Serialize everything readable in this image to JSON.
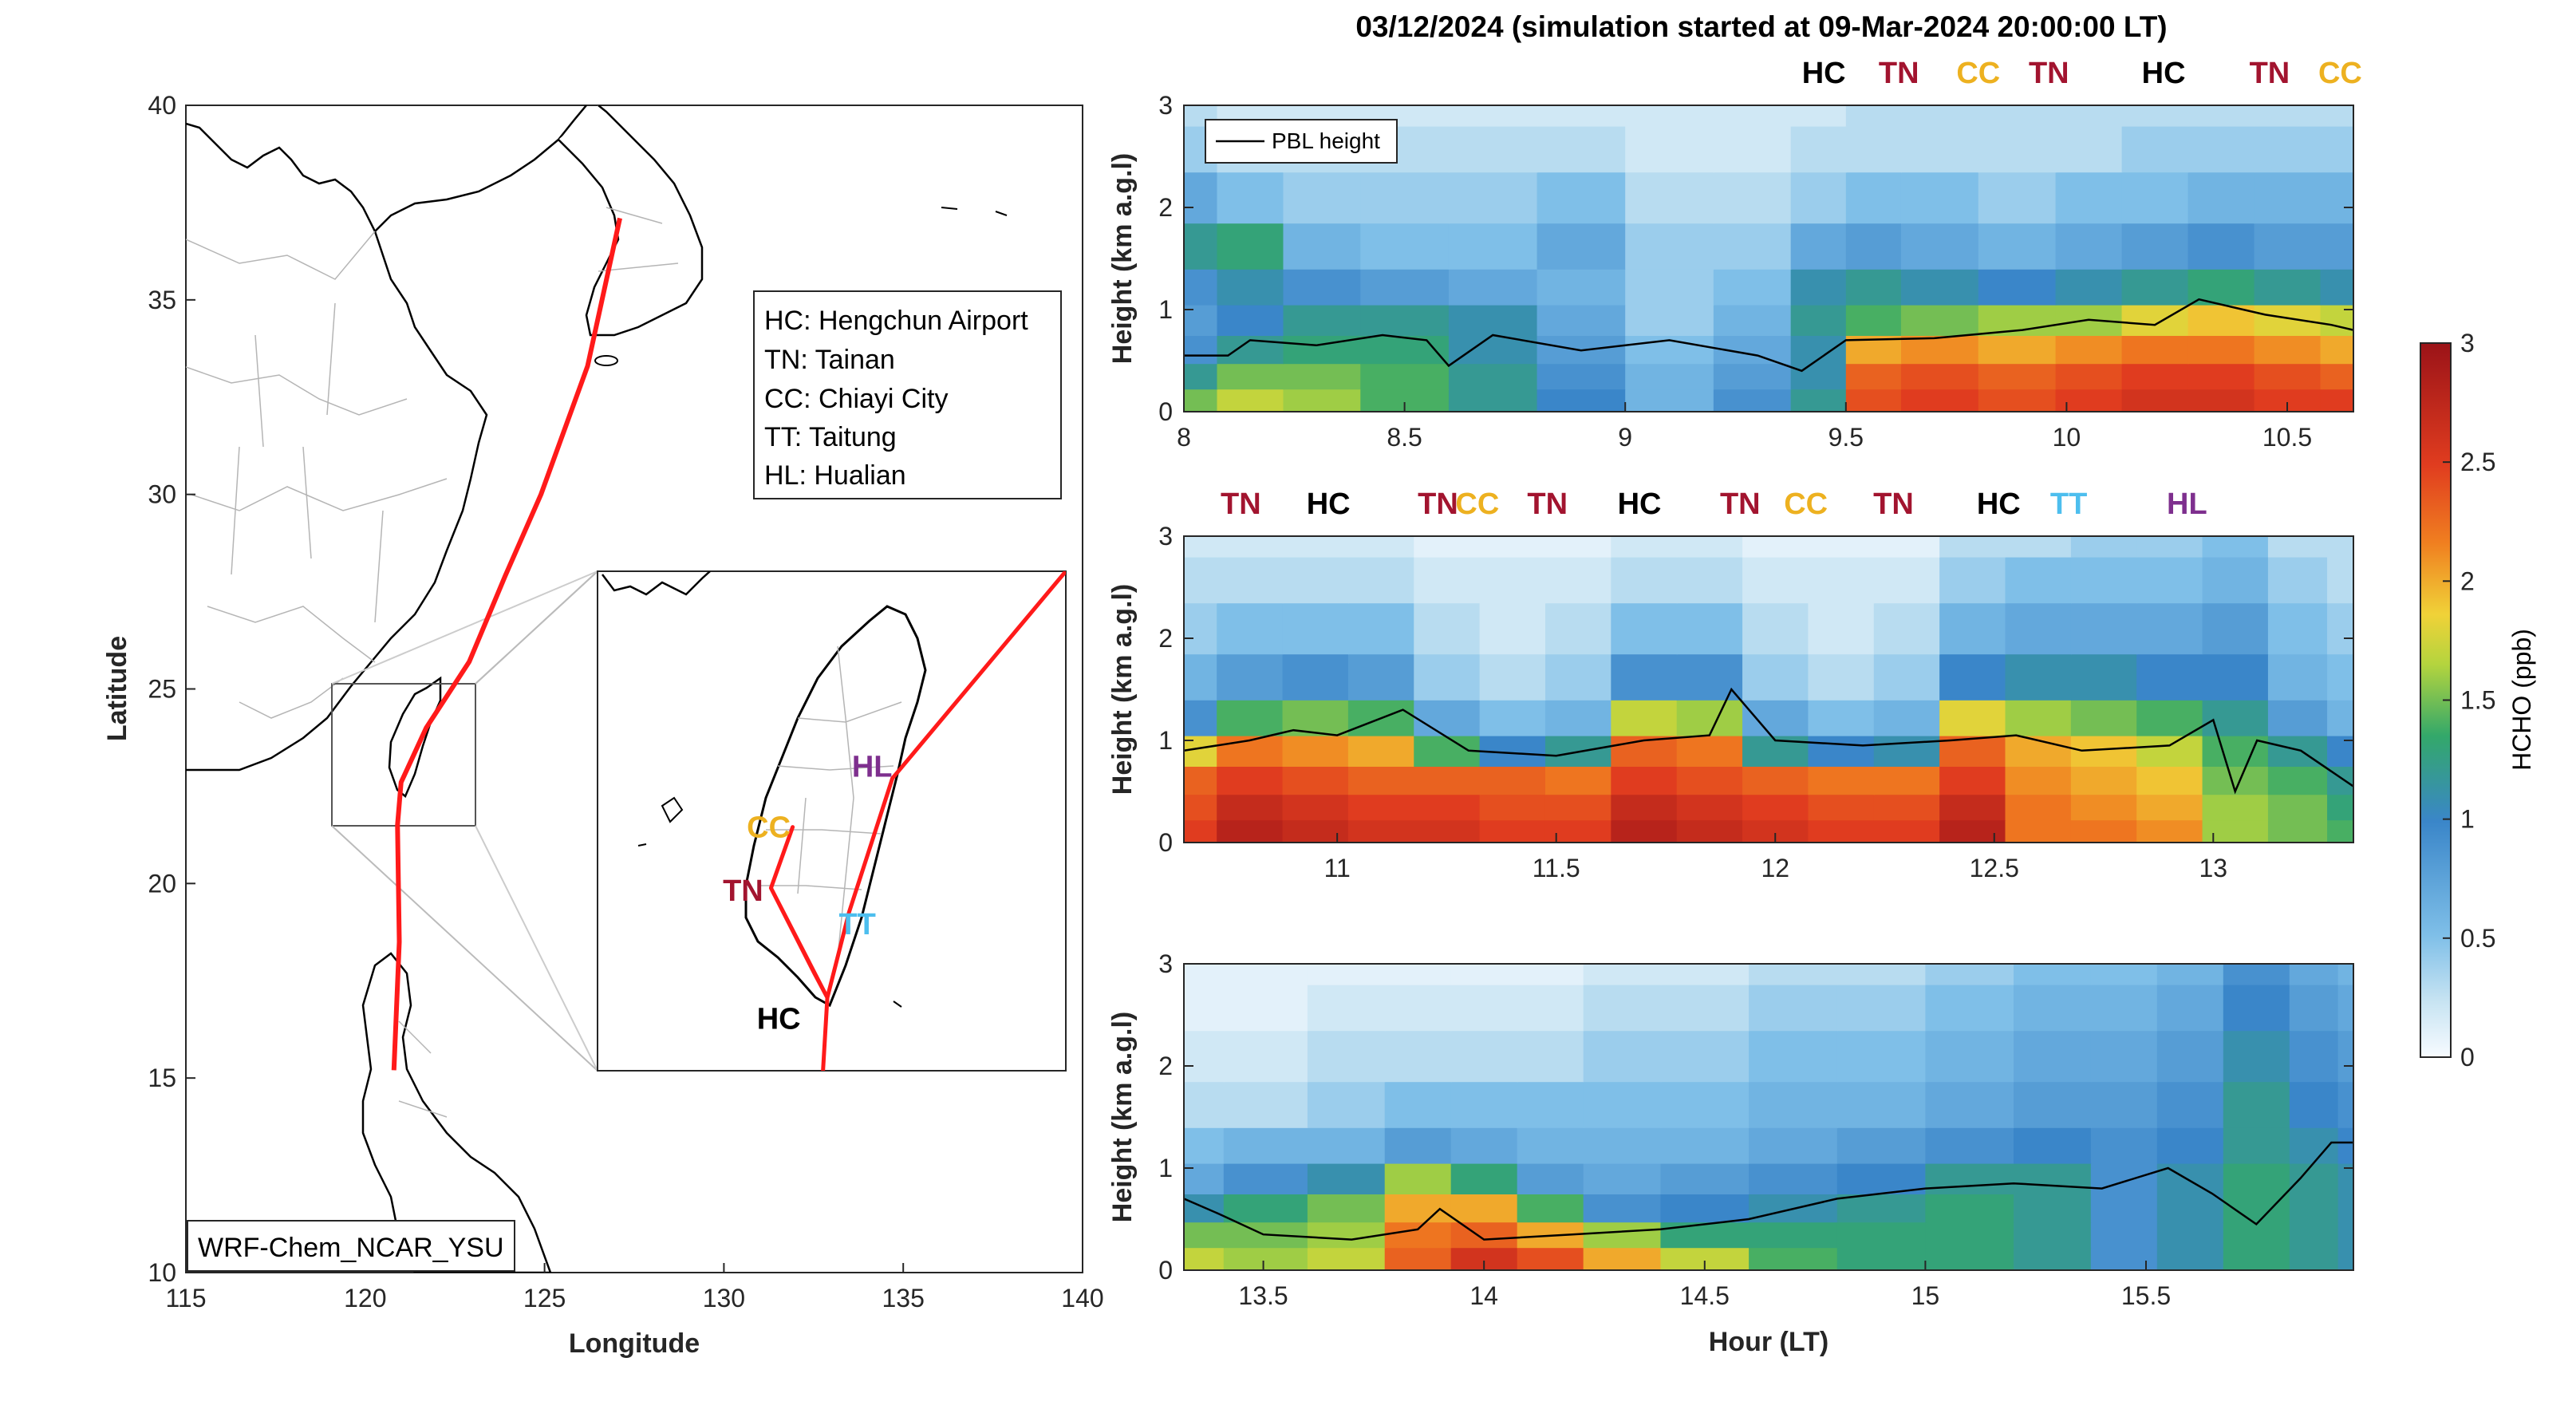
{
  "title": "03/12/2024 (simulation started at 09-Mar-2024 20:00:00 LT)",
  "colors": {
    "track": "#ff1a1a",
    "HC": "#000000",
    "TN": "#a2142f",
    "CC": "#edb120",
    "TT": "#4dbeee",
    "HL": "#7e2f8e"
  },
  "map": {
    "xlabel": "Longitude",
    "ylabel": "Latitude",
    "xlim": [
      115,
      140
    ],
    "ylim": [
      10,
      40
    ],
    "xticks": [
      "115",
      "120",
      "125",
      "130",
      "135",
      "140"
    ],
    "yticks": [
      "10",
      "15",
      "20",
      "25",
      "30",
      "35",
      "40"
    ],
    "model_label": "WRF-Chem_NCAR_YSU",
    "legend": [
      "HC: Hengchun Airport",
      "TN: Tainan",
      "CC: Chiayi City",
      "TT: Taitung",
      "HL: Hualian"
    ],
    "flight_track": [
      [
        127.1,
        37.1
      ],
      [
        126.2,
        33.3
      ],
      [
        124.9,
        30.0
      ],
      [
        123.9,
        27.9
      ],
      [
        122.9,
        25.7
      ],
      [
        121.7,
        24.0
      ],
      [
        121.0,
        22.6
      ],
      [
        120.9,
        21.5
      ],
      [
        120.95,
        18.5
      ],
      [
        120.8,
        15.2
      ]
    ],
    "inset_sites": [
      {
        "code": "CC",
        "lon": 120.45,
        "lat": 23.48
      },
      {
        "code": "HL",
        "lon": 121.55,
        "lat": 23.98
      },
      {
        "code": "TN",
        "lon": 120.2,
        "lat": 23.0
      },
      {
        "code": "TT",
        "lon": 121.15,
        "lat": 22.75
      },
      {
        "code": "HC",
        "lon": 120.75,
        "lat": 22.04
      }
    ]
  },
  "chart_data": [
    {
      "type": "heatmap",
      "variable": "HCHO",
      "ylabel": "Height (km a.g.l)",
      "xlabel": "",
      "xlim": [
        8,
        10.65
      ],
      "ylim": [
        0,
        3
      ],
      "xticks": [
        "8",
        "8.5",
        "9",
        "9.5",
        "10",
        "10.5"
      ],
      "yticks": [
        "0",
        "1",
        "2",
        "3"
      ],
      "legend": "PBL height",
      "site_labels": [
        {
          "code": "HC",
          "time": 9.45
        },
        {
          "code": "TN",
          "time": 9.62
        },
        {
          "code": "CC",
          "time": 9.8
        },
        {
          "code": "TN",
          "time": 9.96
        },
        {
          "code": "HC",
          "time": 10.22
        },
        {
          "code": "TN",
          "time": 10.46
        },
        {
          "code": "CC",
          "time": 10.62
        }
      ],
      "pbl_height": {
        "time": [
          8.0,
          8.1,
          8.15,
          8.3,
          8.45,
          8.55,
          8.6,
          8.7,
          8.9,
          9.1,
          9.3,
          9.4,
          9.45,
          9.5,
          9.7,
          9.9,
          10.05,
          10.2,
          10.3,
          10.45,
          10.6,
          10.65
        ],
        "km": [
          0.55,
          0.55,
          0.7,
          0.65,
          0.75,
          0.7,
          0.45,
          0.75,
          0.6,
          0.7,
          0.55,
          0.4,
          0.55,
          0.7,
          0.72,
          0.8,
          0.9,
          0.85,
          1.1,
          0.95,
          0.85,
          0.8
        ]
      },
      "hcho": {
        "time": [
          8.0,
          8.15,
          8.3,
          8.5,
          8.7,
          8.9,
          9.1,
          9.3,
          9.45,
          9.55,
          9.7,
          9.9,
          10.05,
          10.2,
          10.35,
          10.5,
          10.65
        ],
        "height_km": [
          0.1,
          0.35,
          0.6,
          0.9,
          1.2,
          1.6,
          2.1,
          2.6,
          3.0
        ],
        "ppb": [
          [
            1.5,
            1.7,
            1.6,
            1.4,
            1.2,
            1.0,
            0.6,
            0.9,
            1.2,
            2.4,
            2.5,
            2.4,
            2.5,
            2.6,
            2.6,
            2.5,
            2.5
          ],
          [
            1.2,
            1.5,
            1.5,
            1.4,
            1.2,
            0.9,
            0.6,
            0.8,
            1.1,
            2.3,
            2.4,
            2.3,
            2.4,
            2.5,
            2.5,
            2.4,
            2.3
          ],
          [
            0.9,
            1.2,
            1.3,
            1.3,
            1.1,
            0.8,
            0.5,
            0.7,
            1.1,
            2.0,
            2.1,
            2.0,
            2.1,
            2.2,
            2.2,
            2.1,
            2.0
          ],
          [
            0.8,
            1.0,
            1.2,
            1.2,
            1.1,
            0.7,
            0.4,
            0.6,
            1.2,
            1.4,
            1.5,
            1.6,
            1.6,
            1.8,
            1.9,
            1.8,
            1.7
          ],
          [
            0.9,
            1.1,
            0.9,
            0.8,
            0.7,
            0.6,
            0.4,
            0.5,
            1.1,
            1.2,
            1.1,
            1.0,
            1.1,
            1.2,
            1.3,
            1.2,
            1.1
          ],
          [
            1.2,
            1.3,
            0.6,
            0.5,
            0.5,
            0.7,
            0.4,
            0.4,
            0.7,
            0.8,
            0.7,
            0.6,
            0.7,
            0.8,
            0.9,
            0.8,
            0.8
          ],
          [
            0.7,
            0.5,
            0.4,
            0.4,
            0.4,
            0.5,
            0.3,
            0.3,
            0.4,
            0.5,
            0.5,
            0.4,
            0.5,
            0.5,
            0.6,
            0.6,
            0.6
          ],
          [
            0.4,
            0.3,
            0.3,
            0.3,
            0.3,
            0.3,
            0.2,
            0.2,
            0.3,
            0.3,
            0.3,
            0.3,
            0.3,
            0.4,
            0.4,
            0.4,
            0.4
          ],
          [
            0.3,
            0.2,
            0.2,
            0.2,
            0.2,
            0.2,
            0.2,
            0.2,
            0.2,
            0.3,
            0.3,
            0.3,
            0.3,
            0.3,
            0.3,
            0.3,
            0.3
          ]
        ]
      }
    },
    {
      "type": "heatmap",
      "variable": "HCHO",
      "ylabel": "Height (km a.g.l)",
      "xlabel": "",
      "xlim": [
        10.65,
        13.32
      ],
      "ylim": [
        0,
        3
      ],
      "xticks": [
        "11",
        "11.5",
        "12",
        "12.5",
        "13"
      ],
      "yticks": [
        "0",
        "1",
        "2",
        "3"
      ],
      "site_labels": [
        {
          "code": "TN",
          "time": 10.78
        },
        {
          "code": "HC",
          "time": 10.98
        },
        {
          "code": "TN",
          "time": 11.23
        },
        {
          "code": "CC",
          "time": 11.32
        },
        {
          "code": "TN",
          "time": 11.48
        },
        {
          "code": "HC",
          "time": 11.69
        },
        {
          "code": "TN",
          "time": 11.92
        },
        {
          "code": "CC",
          "time": 12.07
        },
        {
          "code": "TN",
          "time": 12.27
        },
        {
          "code": "HC",
          "time": 12.51
        },
        {
          "code": "TT",
          "time": 12.67
        },
        {
          "code": "HL",
          "time": 12.94
        }
      ],
      "pbl_height": {
        "time": [
          10.65,
          10.8,
          10.9,
          11.0,
          11.15,
          11.3,
          11.5,
          11.7,
          11.85,
          11.9,
          12.0,
          12.2,
          12.4,
          12.55,
          12.7,
          12.9,
          13.0,
          13.05,
          13.1,
          13.2,
          13.32
        ],
        "km": [
          0.9,
          1.0,
          1.1,
          1.05,
          1.3,
          0.9,
          0.85,
          1.0,
          1.05,
          1.5,
          1.0,
          0.95,
          1.0,
          1.05,
          0.9,
          0.95,
          1.2,
          0.5,
          1.0,
          0.9,
          0.55
        ]
      },
      "hcho": {
        "time": [
          10.65,
          10.8,
          10.95,
          11.1,
          11.25,
          11.4,
          11.55,
          11.7,
          11.85,
          12.0,
          12.15,
          12.3,
          12.45,
          12.6,
          12.75,
          12.9,
          13.05,
          13.2,
          13.32
        ],
        "height_km": [
          0.1,
          0.35,
          0.6,
          0.9,
          1.2,
          1.6,
          2.1,
          2.6,
          3.0
        ],
        "ppb": [
          [
            2.5,
            2.8,
            2.7,
            2.6,
            2.6,
            2.5,
            2.5,
            2.8,
            2.7,
            2.6,
            2.5,
            2.5,
            2.8,
            2.2,
            2.2,
            2.1,
            1.6,
            1.5,
            1.4
          ],
          [
            2.4,
            2.7,
            2.6,
            2.5,
            2.5,
            2.4,
            2.4,
            2.7,
            2.6,
            2.5,
            2.4,
            2.4,
            2.7,
            2.2,
            2.1,
            2.0,
            1.6,
            1.5,
            1.3
          ],
          [
            2.3,
            2.5,
            2.4,
            2.3,
            2.3,
            2.3,
            2.2,
            2.5,
            2.4,
            2.3,
            2.2,
            2.2,
            2.5,
            2.1,
            2.0,
            1.9,
            1.5,
            1.4,
            1.2
          ],
          [
            1.8,
            2.2,
            2.1,
            2.0,
            1.4,
            1.0,
            1.2,
            2.3,
            2.2,
            1.2,
            1.0,
            1.1,
            2.3,
            2.0,
            1.9,
            1.7,
            1.4,
            1.2,
            1.0
          ],
          [
            0.9,
            1.4,
            1.5,
            1.4,
            0.7,
            0.5,
            0.6,
            1.7,
            1.6,
            0.7,
            0.5,
            0.6,
            1.8,
            1.6,
            1.5,
            1.4,
            1.2,
            0.8,
            0.6
          ],
          [
            0.6,
            0.8,
            0.9,
            0.8,
            0.4,
            0.3,
            0.4,
            0.9,
            0.9,
            0.4,
            0.3,
            0.4,
            1.0,
            1.1,
            1.1,
            1.0,
            1.0,
            0.6,
            0.5
          ],
          [
            0.4,
            0.5,
            0.5,
            0.5,
            0.3,
            0.2,
            0.3,
            0.5,
            0.5,
            0.3,
            0.2,
            0.3,
            0.6,
            0.7,
            0.7,
            0.7,
            0.8,
            0.5,
            0.4
          ],
          [
            0.3,
            0.3,
            0.3,
            0.3,
            0.2,
            0.2,
            0.2,
            0.3,
            0.3,
            0.2,
            0.2,
            0.2,
            0.4,
            0.5,
            0.5,
            0.5,
            0.6,
            0.4,
            0.3
          ],
          [
            0.2,
            0.2,
            0.2,
            0.2,
            0.1,
            0.1,
            0.1,
            0.2,
            0.2,
            0.1,
            0.1,
            0.1,
            0.3,
            0.3,
            0.4,
            0.4,
            0.5,
            0.3,
            0.3
          ]
        ]
      }
    },
    {
      "type": "heatmap",
      "variable": "HCHO",
      "ylabel": "Height (km a.g.l)",
      "xlabel": "Hour (LT)",
      "xlim": [
        13.32,
        15.97
      ],
      "ylim": [
        0,
        3
      ],
      "xticks": [
        "13.5",
        "14",
        "14.5",
        "15",
        "15.5"
      ],
      "yticks": [
        "0",
        "1",
        "2",
        "3"
      ],
      "pbl_height": {
        "time": [
          13.32,
          13.4,
          13.5,
          13.7,
          13.85,
          13.9,
          14.0,
          14.2,
          14.4,
          14.6,
          14.8,
          15.0,
          15.2,
          15.4,
          15.55,
          15.65,
          15.75,
          15.85,
          15.92,
          15.97
        ],
        "km": [
          0.7,
          0.55,
          0.35,
          0.3,
          0.4,
          0.6,
          0.3,
          0.35,
          0.4,
          0.5,
          0.7,
          0.8,
          0.85,
          0.8,
          1.0,
          0.75,
          0.45,
          0.9,
          1.25,
          1.25
        ]
      },
      "hcho": {
        "time": [
          13.32,
          13.5,
          13.7,
          13.85,
          14.0,
          14.15,
          14.3,
          14.5,
          14.7,
          14.9,
          15.1,
          15.3,
          15.45,
          15.6,
          15.75,
          15.9,
          15.97
        ],
        "height_km": [
          0.1,
          0.35,
          0.6,
          0.9,
          1.2,
          1.6,
          2.1,
          2.6,
          3.0
        ],
        "ppb": [
          [
            1.7,
            1.6,
            1.7,
            2.3,
            2.6,
            2.4,
            2.0,
            1.7,
            1.4,
            1.3,
            1.3,
            1.2,
            0.9,
            1.1,
            1.3,
            1.2,
            1.1
          ],
          [
            1.5,
            1.5,
            1.6,
            2.2,
            2.3,
            2.0,
            1.6,
            1.3,
            1.3,
            1.3,
            1.3,
            1.2,
            0.9,
            1.1,
            1.3,
            1.2,
            1.1
          ],
          [
            1.1,
            1.3,
            1.5,
            2.0,
            2.0,
            1.4,
            0.9,
            1.0,
            1.1,
            1.2,
            1.3,
            1.2,
            0.9,
            1.1,
            1.3,
            1.2,
            1.1
          ],
          [
            0.7,
            0.9,
            1.1,
            1.6,
            1.3,
            0.8,
            0.7,
            0.8,
            0.9,
            1.0,
            1.2,
            1.2,
            0.9,
            1.1,
            1.3,
            1.2,
            1.1
          ],
          [
            0.5,
            0.6,
            0.6,
            0.8,
            0.7,
            0.6,
            0.6,
            0.6,
            0.7,
            0.8,
            0.9,
            1.0,
            0.9,
            1.0,
            1.2,
            1.1,
            1.0
          ],
          [
            0.3,
            0.3,
            0.4,
            0.5,
            0.5,
            0.5,
            0.5,
            0.5,
            0.6,
            0.6,
            0.7,
            0.8,
            0.8,
            0.9,
            1.2,
            1.0,
            0.9
          ],
          [
            0.2,
            0.2,
            0.3,
            0.3,
            0.3,
            0.3,
            0.4,
            0.4,
            0.5,
            0.5,
            0.6,
            0.7,
            0.7,
            0.8,
            1.1,
            0.9,
            0.8
          ],
          [
            0.1,
            0.1,
            0.2,
            0.2,
            0.2,
            0.2,
            0.3,
            0.3,
            0.4,
            0.4,
            0.5,
            0.6,
            0.6,
            0.7,
            1.0,
            0.8,
            0.7
          ],
          [
            0.1,
            0.1,
            0.1,
            0.1,
            0.1,
            0.1,
            0.2,
            0.2,
            0.3,
            0.3,
            0.4,
            0.5,
            0.5,
            0.6,
            0.9,
            0.7,
            0.6
          ]
        ]
      }
    }
  ],
  "colorbar": {
    "label": "HCHO (ppb)",
    "range": [
      0,
      3
    ],
    "ticks": [
      "0",
      "0.5",
      "1",
      "1.5",
      "2",
      "2.5",
      "3"
    ]
  }
}
